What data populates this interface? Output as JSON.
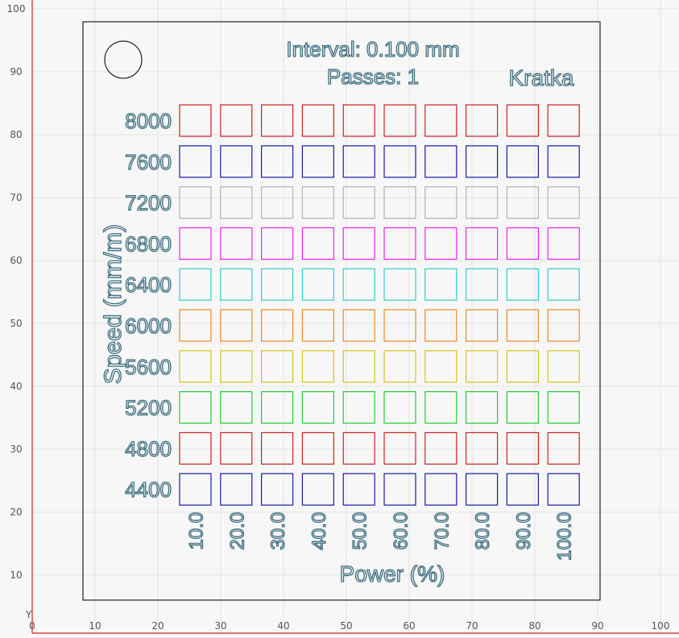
{
  "workspace": {
    "x_ticks": [
      "0",
      "10",
      "20",
      "30",
      "40",
      "50",
      "60",
      "70",
      "80",
      "90",
      "100"
    ],
    "y_ticks": [
      "100",
      "90",
      "80",
      "70",
      "60",
      "50",
      "40",
      "30",
      "20",
      "10"
    ],
    "axis_label_y": "Y"
  },
  "card": {
    "interval_text": "Interval: 0.100 mm",
    "passes_text": "Passes: 1",
    "name_text": "Kratka",
    "y_axis_title": "Speed (mm/m)",
    "x_axis_title": "Power (%)"
  },
  "grid": {
    "speeds": [
      {
        "label": "8000",
        "color": "#cc2222"
      },
      {
        "label": "7600",
        "color": "#1a1aa8"
      },
      {
        "label": "7200",
        "color": "#b3b3b3"
      },
      {
        "label": "6800",
        "color": "#ee22ee"
      },
      {
        "label": "6400",
        "color": "#33cccc"
      },
      {
        "label": "6000",
        "color": "#ee8822"
      },
      {
        "label": "5600",
        "color": "#d6c41c"
      },
      {
        "label": "5200",
        "color": "#22cc33"
      },
      {
        "label": "4800",
        "color": "#cc2222"
      },
      {
        "label": "4400",
        "color": "#1a1aa8"
      }
    ],
    "powers": [
      "10.0",
      "20.0",
      "30.0",
      "40.0",
      "50.0",
      "60.0",
      "70.0",
      "80.0",
      "90.0",
      "100.0"
    ]
  }
}
